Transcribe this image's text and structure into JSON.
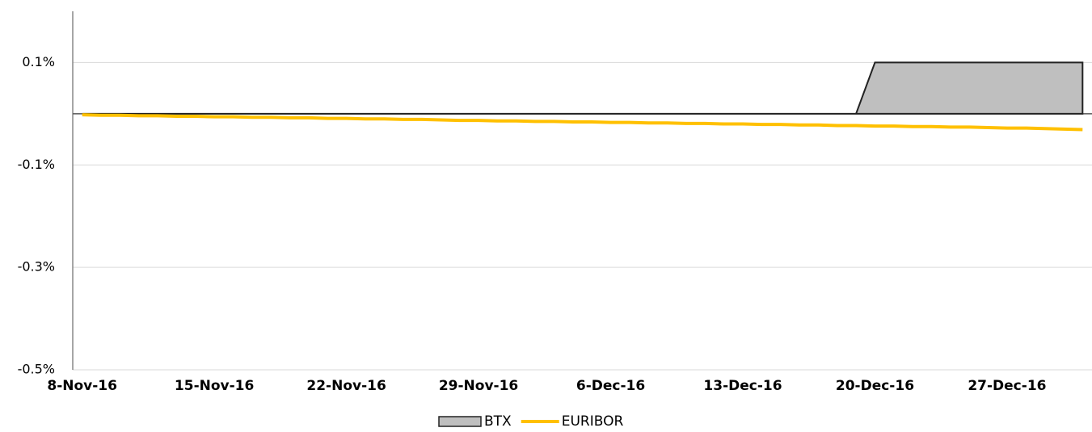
{
  "chart_data": {
    "type": "line",
    "categories": [
      "8-Nov-16",
      null,
      null,
      null,
      null,
      null,
      null,
      "15-Nov-16",
      null,
      null,
      null,
      null,
      null,
      null,
      "22-Nov-16",
      null,
      null,
      null,
      null,
      null,
      null,
      "29-Nov-16",
      null,
      null,
      null,
      null,
      null,
      null,
      "6-Dec-16",
      null,
      null,
      null,
      null,
      null,
      null,
      "13-Dec-16",
      null,
      null,
      null,
      null,
      null,
      null,
      "20-Dec-16",
      null,
      null,
      null,
      null,
      null,
      null,
      "27-Dec-16",
      null,
      null,
      null,
      null
    ],
    "series": [
      {
        "name": "BTX",
        "type": "area",
        "color": "#bfbfbf",
        "edge_color": "#222222",
        "values": [
          0,
          0,
          0,
          0,
          0,
          0,
          0,
          0,
          0,
          0,
          0,
          0,
          0,
          0,
          0,
          0,
          0,
          0,
          0,
          0,
          0,
          0,
          0,
          0,
          0,
          0,
          0,
          0,
          0,
          0,
          0,
          0,
          0,
          0,
          0,
          0,
          0,
          0,
          0,
          0,
          0,
          0,
          0.1,
          0.1,
          0.1,
          0.1,
          0.1,
          0.1,
          0.1,
          0.1,
          0.1,
          0.1,
          0.1,
          0.1
        ]
      },
      {
        "name": "EURIBOR",
        "type": "line",
        "color": "#ffc000",
        "values": [
          -0.002,
          -0.003,
          -0.003,
          -0.004,
          -0.004,
          -0.005,
          -0.005,
          -0.006,
          -0.006,
          -0.007,
          -0.007,
          -0.008,
          -0.008,
          -0.009,
          -0.009,
          -0.01,
          -0.01,
          -0.011,
          -0.011,
          -0.012,
          -0.013,
          -0.013,
          -0.014,
          -0.014,
          -0.015,
          -0.015,
          -0.016,
          -0.016,
          -0.017,
          -0.017,
          -0.018,
          -0.018,
          -0.019,
          -0.019,
          -0.02,
          -0.02,
          -0.021,
          -0.021,
          -0.022,
          -0.022,
          -0.023,
          -0.023,
          -0.024,
          -0.024,
          -0.025,
          -0.025,
          -0.026,
          -0.026,
          -0.027,
          -0.028,
          -0.028,
          -0.029,
          -0.03,
          -0.031
        ]
      }
    ],
    "ylim": [
      -0.5,
      0.2
    ],
    "yticks": [
      {
        "value": 0.1,
        "label": "0.1%"
      },
      {
        "value": -0.1,
        "label": "-0.1%"
      },
      {
        "value": -0.3,
        "label": "-0.3%"
      },
      {
        "value": -0.5,
        "label": "-0.5%"
      }
    ],
    "grid": true,
    "legend": "bottom"
  }
}
